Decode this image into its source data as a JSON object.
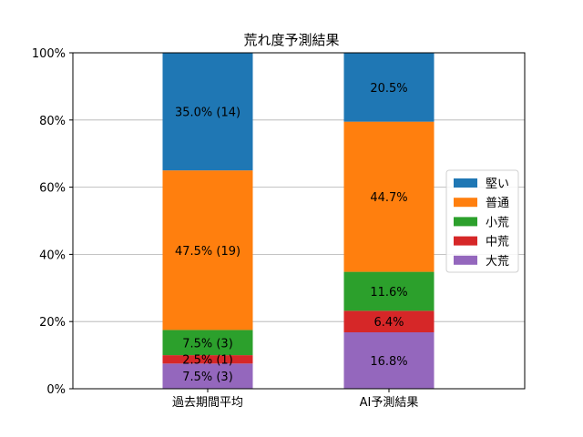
{
  "chart_data": {
    "type": "bar",
    "stacked": true,
    "title": "荒れ度予測結果",
    "xlabel": "",
    "ylabel": "",
    "categories": [
      "過去期間平均",
      "AI予測結果"
    ],
    "ylim": [
      0,
      100
    ],
    "yticks": [
      "0%",
      "20%",
      "40%",
      "60%",
      "80%",
      "100%"
    ],
    "ytick_values": [
      0,
      20,
      40,
      60,
      80,
      100
    ],
    "grid": "horizontal",
    "legend_position": "right",
    "series": [
      {
        "name": "大荒",
        "color": "#9467bd",
        "values": [
          7.5,
          16.8
        ],
        "labels": [
          "7.5% (3)",
          "16.8%"
        ]
      },
      {
        "name": "中荒",
        "color": "#d62728",
        "values": [
          2.5,
          6.4
        ],
        "labels": [
          "2.5% (1)",
          "6.4%"
        ]
      },
      {
        "name": "小荒",
        "color": "#2ca02c",
        "values": [
          7.5,
          11.6
        ],
        "labels": [
          "7.5% (3)",
          "11.6%"
        ]
      },
      {
        "name": "普通",
        "color": "#ff7f0e",
        "values": [
          47.5,
          44.7
        ],
        "labels": [
          "47.5% (19)",
          "44.7%"
        ]
      },
      {
        "name": "堅い",
        "color": "#1f77b4",
        "values": [
          35.0,
          20.5
        ],
        "labels": [
          "35.0% (14)",
          "20.5%"
        ]
      }
    ],
    "legend_order": [
      "堅い",
      "普通",
      "小荒",
      "中荒",
      "大荒"
    ]
  }
}
